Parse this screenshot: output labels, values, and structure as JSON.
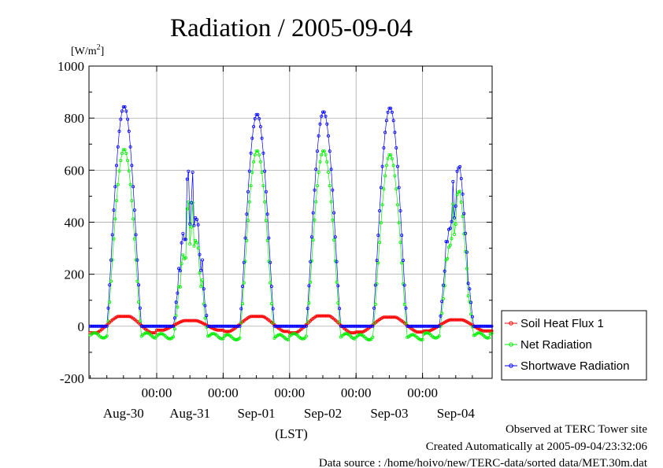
{
  "chart_data": {
    "type": "line",
    "title": "Radiation / 2005-09-04",
    "ylabel": "[W/m",
    "ylabel_sup": "2",
    "ylabel_end": "]",
    "xlabel": "(LST)",
    "ylim": [
      -200,
      1000
    ],
    "xlim": [
      0,
      6
    ],
    "grid": true,
    "legend_position": "right",
    "y_ticks": [
      "1000",
      "800",
      "600",
      "400",
      "200",
      "0",
      "-200"
    ],
    "x_time_ticks": [
      "00:00",
      "00:00",
      "00:00",
      "00:00",
      "00:00"
    ],
    "x_date_labels": [
      "Aug-30",
      "Aug-31",
      "Sep-01",
      "Sep-02",
      "Sep-03",
      "Sep-04"
    ],
    "series": [
      {
        "name": "Soil Heat Flux 1",
        "color": "#ff0000",
        "marker": "circle"
      },
      {
        "name": "Net Radiation",
        "color": "#00ee00",
        "marker": "circle"
      },
      {
        "name": "Shortwave Radiation",
        "color": "#0000ff",
        "marker": "circle"
      }
    ],
    "daily_profile": {
      "shortwave_peak": [
        845,
        560,
        815,
        825,
        840,
        600
      ],
      "net_peak": [
        650,
        420,
        645,
        645,
        630,
        480
      ],
      "net_night": [
        -35,
        -38,
        -42,
        -38,
        -42,
        -35
      ],
      "soil_peak": [
        38,
        22,
        38,
        40,
        35,
        25
      ],
      "soil_min": [
        -25,
        -15,
        -20,
        -25,
        -22,
        -18
      ]
    }
  },
  "footer": {
    "site": "Observed at TERC Tower site",
    "created": "Created Automatically at 2005-09-04/23:32:06",
    "source": "Data source : /home/hoivo/new/TERC-data/sorted  data/MET.30m.dat"
  }
}
